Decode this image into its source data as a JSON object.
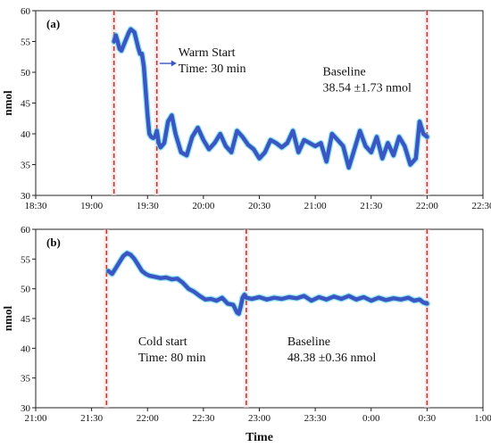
{
  "chart_data": [
    {
      "type": "line",
      "panel_label": "(a)",
      "ylabel": "nmol",
      "xlabel": "",
      "x_range_min": [
        1110,
        1350
      ],
      "x_ticks": [
        "18:30",
        "19:00",
        "19:30",
        "20:00",
        "20:30",
        "21:00",
        "21:30",
        "22:00",
        "22:30"
      ],
      "ylim": [
        30,
        60
      ],
      "y_ticks": [
        "30",
        "35",
        "40",
        "45",
        "50",
        "55",
        "60"
      ],
      "grid": false,
      "line_color": "#3a56c4",
      "shade_color": "#3fd0df",
      "vline_color": "#c0392b",
      "vlines_min": [
        1152,
        1175,
        1320
      ],
      "annotations": [
        {
          "lines": [
            "Warm Start",
            "Time: 30 min"
          ],
          "x_min": 1176,
          "y": 52.6,
          "arrow": true
        },
        {
          "lines": [
            "Baseline",
            "38.54 ±1.73 nmol"
          ],
          "x_min": 1264,
          "y": 49.5,
          "arrow": false
        }
      ],
      "x": [
        1152,
        1153,
        1154,
        1155,
        1156,
        1158,
        1160,
        1161,
        1163,
        1165,
        1166,
        1167,
        1168,
        1169,
        1170,
        1171,
        1172,
        1173,
        1174,
        1175,
        1176,
        1177,
        1179,
        1181,
        1183,
        1185,
        1188,
        1191,
        1194,
        1197,
        1200,
        1203,
        1206,
        1209,
        1212,
        1215,
        1218,
        1221,
        1224,
        1227,
        1230,
        1233,
        1236,
        1239,
        1242,
        1245,
        1248,
        1251,
        1254,
        1257,
        1260,
        1263,
        1266,
        1269,
        1272,
        1275,
        1278,
        1281,
        1284,
        1287,
        1290,
        1293,
        1296,
        1299,
        1302,
        1305,
        1308,
        1311,
        1314,
        1316,
        1318,
        1320
      ],
      "y": [
        55,
        56,
        55,
        53.8,
        53.5,
        55,
        56.5,
        57,
        56.5,
        54,
        53,
        53,
        51,
        47,
        43,
        40,
        39.5,
        39.3,
        39.5,
        40.5,
        38.5,
        37.8,
        38.5,
        42,
        43,
        40,
        37,
        36.5,
        39.5,
        41,
        39,
        37.5,
        38.5,
        40,
        38,
        37,
        40.5,
        39.5,
        38.2,
        37.5,
        36,
        37,
        39,
        38.5,
        37.8,
        38.5,
        40.5,
        37,
        39,
        38.5,
        38,
        38.5,
        35.5,
        40,
        39,
        38,
        34.5,
        37.5,
        40.5,
        38,
        37,
        39.5,
        36,
        38.5,
        36.5,
        39.5,
        38,
        35,
        36,
        42,
        40,
        39.5
      ]
    },
    {
      "type": "line",
      "panel_label": "(b)",
      "ylabel": "nmol",
      "xlabel": "Time",
      "x_range_min": [
        1260,
        1500
      ],
      "x_ticks": [
        "21:00",
        "21:30",
        "22:00",
        "22:30",
        "23:00",
        "23:30",
        "0:00",
        "0:30",
        "1:00"
      ],
      "ylim": [
        30,
        60
      ],
      "y_ticks": [
        "30",
        "35",
        "40",
        "45",
        "50",
        "55",
        "60"
      ],
      "grid": false,
      "line_color": "#3a56c4",
      "shade_color": "#3fd0df",
      "vline_color": "#c0392b",
      "vlines_min": [
        1298,
        1373,
        1470
      ],
      "annotations": [
        {
          "lines": [
            "Cold start",
            "Time: 80 min"
          ],
          "x_min": 1315,
          "y": 40.5,
          "arrow": false
        },
        {
          "lines": [
            "Baseline",
            "48.38 ±0.36 nmol"
          ],
          "x_min": 1395,
          "y": 40.5,
          "arrow": false
        }
      ],
      "x": [
        1299,
        1301,
        1303,
        1305,
        1307,
        1309,
        1311,
        1313,
        1315,
        1317,
        1319,
        1321,
        1324,
        1327,
        1330,
        1333,
        1336,
        1339,
        1342,
        1345,
        1348,
        1351,
        1354,
        1357,
        1360,
        1363,
        1366,
        1368,
        1369,
        1370,
        1371,
        1372,
        1373,
        1376,
        1380,
        1384,
        1388,
        1392,
        1396,
        1400,
        1404,
        1408,
        1412,
        1416,
        1420,
        1424,
        1428,
        1432,
        1436,
        1440,
        1444,
        1448,
        1452,
        1456,
        1460,
        1463,
        1466,
        1468,
        1470
      ],
      "y": [
        53,
        52.5,
        53.5,
        54.5,
        55.5,
        56,
        55.7,
        55,
        54,
        53,
        52.5,
        52.2,
        52,
        51.8,
        51.9,
        51.6,
        51.7,
        51,
        50,
        49.5,
        48.8,
        48.2,
        48.3,
        48,
        48.5,
        47.5,
        47.3,
        46,
        45.8,
        47,
        48.5,
        49,
        48.5,
        48.3,
        48.6,
        48.2,
        48.5,
        48.3,
        48.6,
        48.4,
        48.8,
        48,
        48.6,
        48.2,
        48.7,
        48.3,
        48.8,
        48.2,
        48.6,
        48,
        48.5,
        48.1,
        48.4,
        48.2,
        48.5,
        48,
        48.2,
        47.7,
        47.5
      ]
    }
  ]
}
